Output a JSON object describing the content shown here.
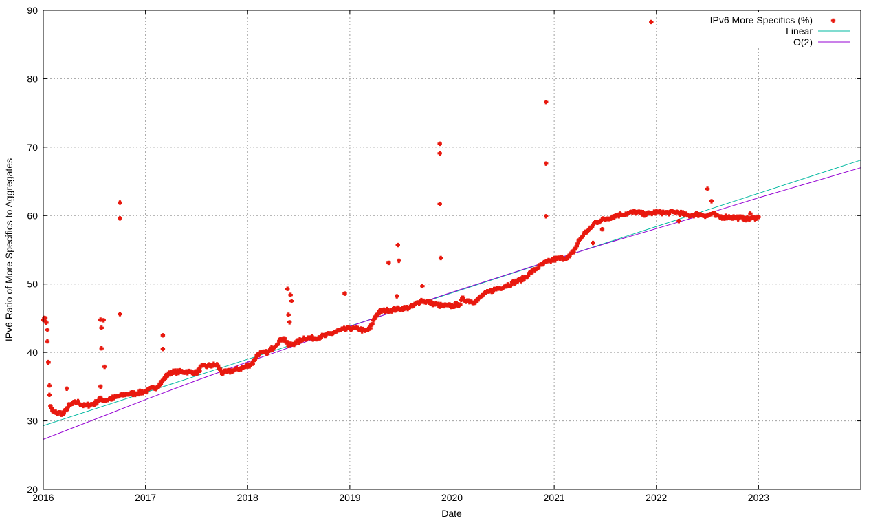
{
  "chart_data": {
    "type": "scatter",
    "xlabel": "Date",
    "ylabel": "IPv6 Ratio of More Specifics to Aggregates",
    "x_ticks": [
      "2016",
      "2017",
      "2018",
      "2019",
      "2020",
      "2021",
      "2022",
      "2023"
    ],
    "y_ticks": [
      "20",
      "30",
      "40",
      "50",
      "60",
      "70",
      "80",
      "90"
    ],
    "xlim": [
      2016.0,
      2024.0
    ],
    "ylim": [
      20,
      90
    ],
    "grid": true,
    "legend_position": "top-right",
    "series": [
      {
        "name": "IPv6 More Specifics (%)",
        "kind": "points",
        "color": "#e8190f",
        "marker": "plus",
        "trend": [
          [
            2016.0,
            45.0
          ],
          [
            2016.03,
            44.5
          ],
          [
            2016.05,
            38.5
          ],
          [
            2016.07,
            32.0
          ],
          [
            2016.1,
            31.2
          ],
          [
            2016.2,
            31.1
          ],
          [
            2016.25,
            32.2
          ],
          [
            2016.33,
            32.8
          ],
          [
            2016.4,
            32.2
          ],
          [
            2016.5,
            32.5
          ],
          [
            2016.55,
            33.2
          ],
          [
            2016.6,
            33.0
          ],
          [
            2016.7,
            33.4
          ],
          [
            2016.8,
            33.9
          ],
          [
            2016.9,
            34.0
          ],
          [
            2017.0,
            34.3
          ],
          [
            2017.1,
            34.9
          ],
          [
            2017.15,
            35.5
          ],
          [
            2017.2,
            36.5
          ],
          [
            2017.25,
            37.1
          ],
          [
            2017.4,
            37.2
          ],
          [
            2017.5,
            37.0
          ],
          [
            2017.55,
            37.9
          ],
          [
            2017.7,
            38.2
          ],
          [
            2017.75,
            37.0
          ],
          [
            2017.85,
            37.3
          ],
          [
            2018.0,
            38.0
          ],
          [
            2018.05,
            38.5
          ],
          [
            2018.1,
            39.8
          ],
          [
            2018.2,
            40.0
          ],
          [
            2018.3,
            41.5
          ],
          [
            2018.35,
            42.2
          ],
          [
            2018.4,
            41.0
          ],
          [
            2018.5,
            41.6
          ],
          [
            2018.55,
            42.1
          ],
          [
            2018.65,
            42.1
          ],
          [
            2018.75,
            42.4
          ],
          [
            2018.9,
            43.2
          ],
          [
            2019.0,
            43.5
          ],
          [
            2019.1,
            43.4
          ],
          [
            2019.15,
            43.1
          ],
          [
            2019.2,
            43.5
          ],
          [
            2019.25,
            45.3
          ],
          [
            2019.3,
            46.0
          ],
          [
            2019.4,
            46.2
          ],
          [
            2019.5,
            46.4
          ],
          [
            2019.6,
            46.6
          ],
          [
            2019.7,
            47.6
          ],
          [
            2019.8,
            47.2
          ],
          [
            2019.9,
            46.8
          ],
          [
            2020.0,
            46.8
          ],
          [
            2020.08,
            47.1
          ],
          [
            2020.1,
            47.8
          ],
          [
            2020.15,
            47.6
          ],
          [
            2020.2,
            47.4
          ],
          [
            2020.25,
            47.6
          ],
          [
            2020.3,
            48.4
          ],
          [
            2020.4,
            49.1
          ],
          [
            2020.5,
            49.6
          ],
          [
            2020.6,
            50.2
          ],
          [
            2020.7,
            50.8
          ],
          [
            2020.8,
            52.0
          ],
          [
            2020.9,
            53.0
          ],
          [
            2021.0,
            53.6
          ],
          [
            2021.1,
            53.8
          ],
          [
            2021.15,
            54.0
          ],
          [
            2021.2,
            55.0
          ],
          [
            2021.25,
            56.5
          ],
          [
            2021.3,
            57.5
          ],
          [
            2021.35,
            58.0
          ],
          [
            2021.4,
            59.0
          ],
          [
            2021.5,
            59.5
          ],
          [
            2021.6,
            60.0
          ],
          [
            2021.7,
            60.3
          ],
          [
            2021.8,
            60.5
          ],
          [
            2021.85,
            60.3
          ],
          [
            2021.9,
            60.2
          ],
          [
            2022.0,
            60.5
          ],
          [
            2022.1,
            60.4
          ],
          [
            2022.2,
            60.5
          ],
          [
            2022.25,
            60.3
          ],
          [
            2022.3,
            60.0
          ],
          [
            2022.4,
            60.2
          ],
          [
            2022.5,
            60.0
          ],
          [
            2022.55,
            60.3
          ],
          [
            2022.6,
            59.8
          ],
          [
            2022.7,
            59.8
          ],
          [
            2022.8,
            59.7
          ],
          [
            2022.9,
            59.5
          ],
          [
            2023.0,
            59.8
          ]
        ],
        "outliers": [
          [
            2016.02,
            45.0
          ],
          [
            2016.04,
            43.3
          ],
          [
            2016.05,
            38.6
          ],
          [
            2016.06,
            33.8
          ],
          [
            2016.23,
            34.7
          ],
          [
            2016.56,
            35.0
          ],
          [
            2016.56,
            44.8
          ],
          [
            2016.57,
            43.6
          ],
          [
            2016.57,
            40.6
          ],
          [
            2016.59,
            44.7
          ],
          [
            2016.6,
            37.9
          ],
          [
            2016.75,
            61.9
          ],
          [
            2016.75,
            59.6
          ],
          [
            2016.75,
            45.6
          ],
          [
            2017.17,
            42.5
          ],
          [
            2017.17,
            40.5
          ],
          [
            2018.39,
            49.3
          ],
          [
            2018.4,
            45.5
          ],
          [
            2018.41,
            44.4
          ],
          [
            2018.42,
            48.4
          ],
          [
            2018.43,
            47.5
          ],
          [
            2018.95,
            48.6
          ],
          [
            2019.38,
            53.1
          ],
          [
            2019.46,
            48.2
          ],
          [
            2019.47,
            55.7
          ],
          [
            2019.48,
            53.4
          ],
          [
            2019.71,
            49.7
          ],
          [
            2019.88,
            70.5
          ],
          [
            2019.88,
            69.1
          ],
          [
            2019.88,
            61.7
          ],
          [
            2019.89,
            53.8
          ],
          [
            2020.92,
            76.6
          ],
          [
            2020.92,
            67.6
          ],
          [
            2020.92,
            59.9
          ],
          [
            2021.38,
            56.0
          ],
          [
            2021.47,
            58.0
          ],
          [
            2021.95,
            88.3
          ],
          [
            2022.22,
            59.2
          ],
          [
            2022.5,
            63.9
          ],
          [
            2022.54,
            62.1
          ],
          [
            2022.92,
            60.3
          ]
        ]
      },
      {
        "name": "Linear",
        "kind": "line",
        "color": "#00b8a0",
        "points": [
          [
            2016.0,
            29.3
          ],
          [
            2024.0,
            68.1
          ]
        ]
      },
      {
        "name": "O(2)",
        "kind": "line",
        "color": "#9400d3",
        "points": [
          [
            2016.0,
            27.3
          ],
          [
            2016.5,
            30.2
          ],
          [
            2017.0,
            33.1
          ],
          [
            2017.5,
            35.9
          ],
          [
            2018.0,
            38.6
          ],
          [
            2018.5,
            41.2
          ],
          [
            2019.0,
            43.8
          ],
          [
            2019.5,
            46.3
          ],
          [
            2020.0,
            48.8
          ],
          [
            2020.5,
            51.2
          ],
          [
            2021.0,
            53.6
          ],
          [
            2021.5,
            55.9
          ],
          [
            2022.0,
            58.1
          ],
          [
            2022.5,
            60.3
          ],
          [
            2023.0,
            62.6
          ],
          [
            2023.5,
            64.8
          ],
          [
            2024.0,
            67.0
          ]
        ]
      }
    ]
  }
}
